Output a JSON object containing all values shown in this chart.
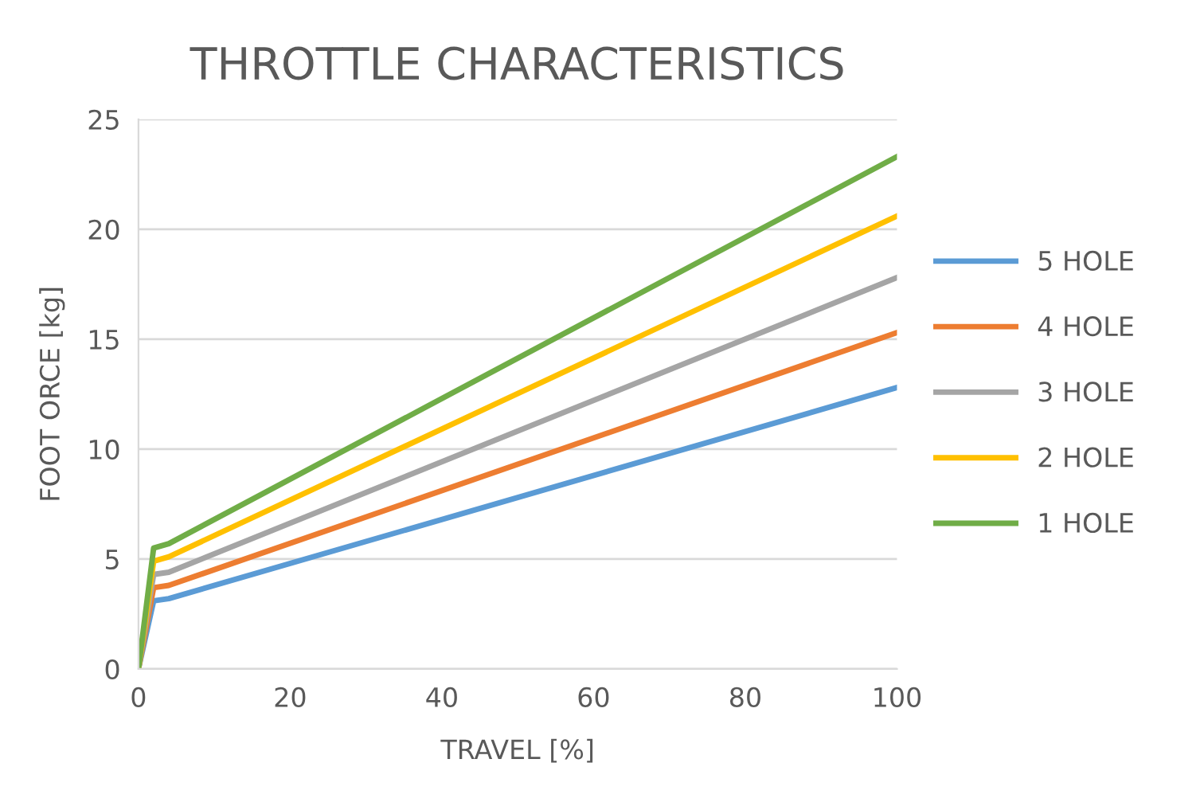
{
  "chart_data": {
    "type": "line",
    "title": "THROTTLE CHARACTERISTICS",
    "xlabel": "TRAVEL [%]",
    "ylabel": "FOOT ORCE [kg]",
    "x": [
      0,
      2,
      4,
      100
    ],
    "series": [
      {
        "name": "5 HOLE",
        "color": "#5b9bd5",
        "values": [
          0,
          3.1,
          3.2,
          12.8
        ]
      },
      {
        "name": "4 HOLE",
        "color": "#ed7d31",
        "values": [
          0,
          3.7,
          3.8,
          15.3
        ]
      },
      {
        "name": "3 HOLE",
        "color": "#a5a5a5",
        "values": [
          0,
          4.3,
          4.4,
          17.8
        ]
      },
      {
        "name": "2 HOLE",
        "color": "#ffc000",
        "values": [
          0,
          4.9,
          5.1,
          20.6
        ]
      },
      {
        "name": "1 HOLE",
        "color": "#70ad47",
        "values": [
          0,
          5.5,
          5.7,
          23.3
        ]
      }
    ],
    "xlim": [
      0,
      100
    ],
    "xticks": [
      0,
      20,
      40,
      60,
      80,
      100
    ],
    "ylim": [
      0,
      25
    ],
    "yticks": [
      0,
      5,
      10,
      15,
      20,
      25
    ],
    "grid": "y",
    "legend": "right",
    "marker": "none",
    "line_style": "solid"
  }
}
